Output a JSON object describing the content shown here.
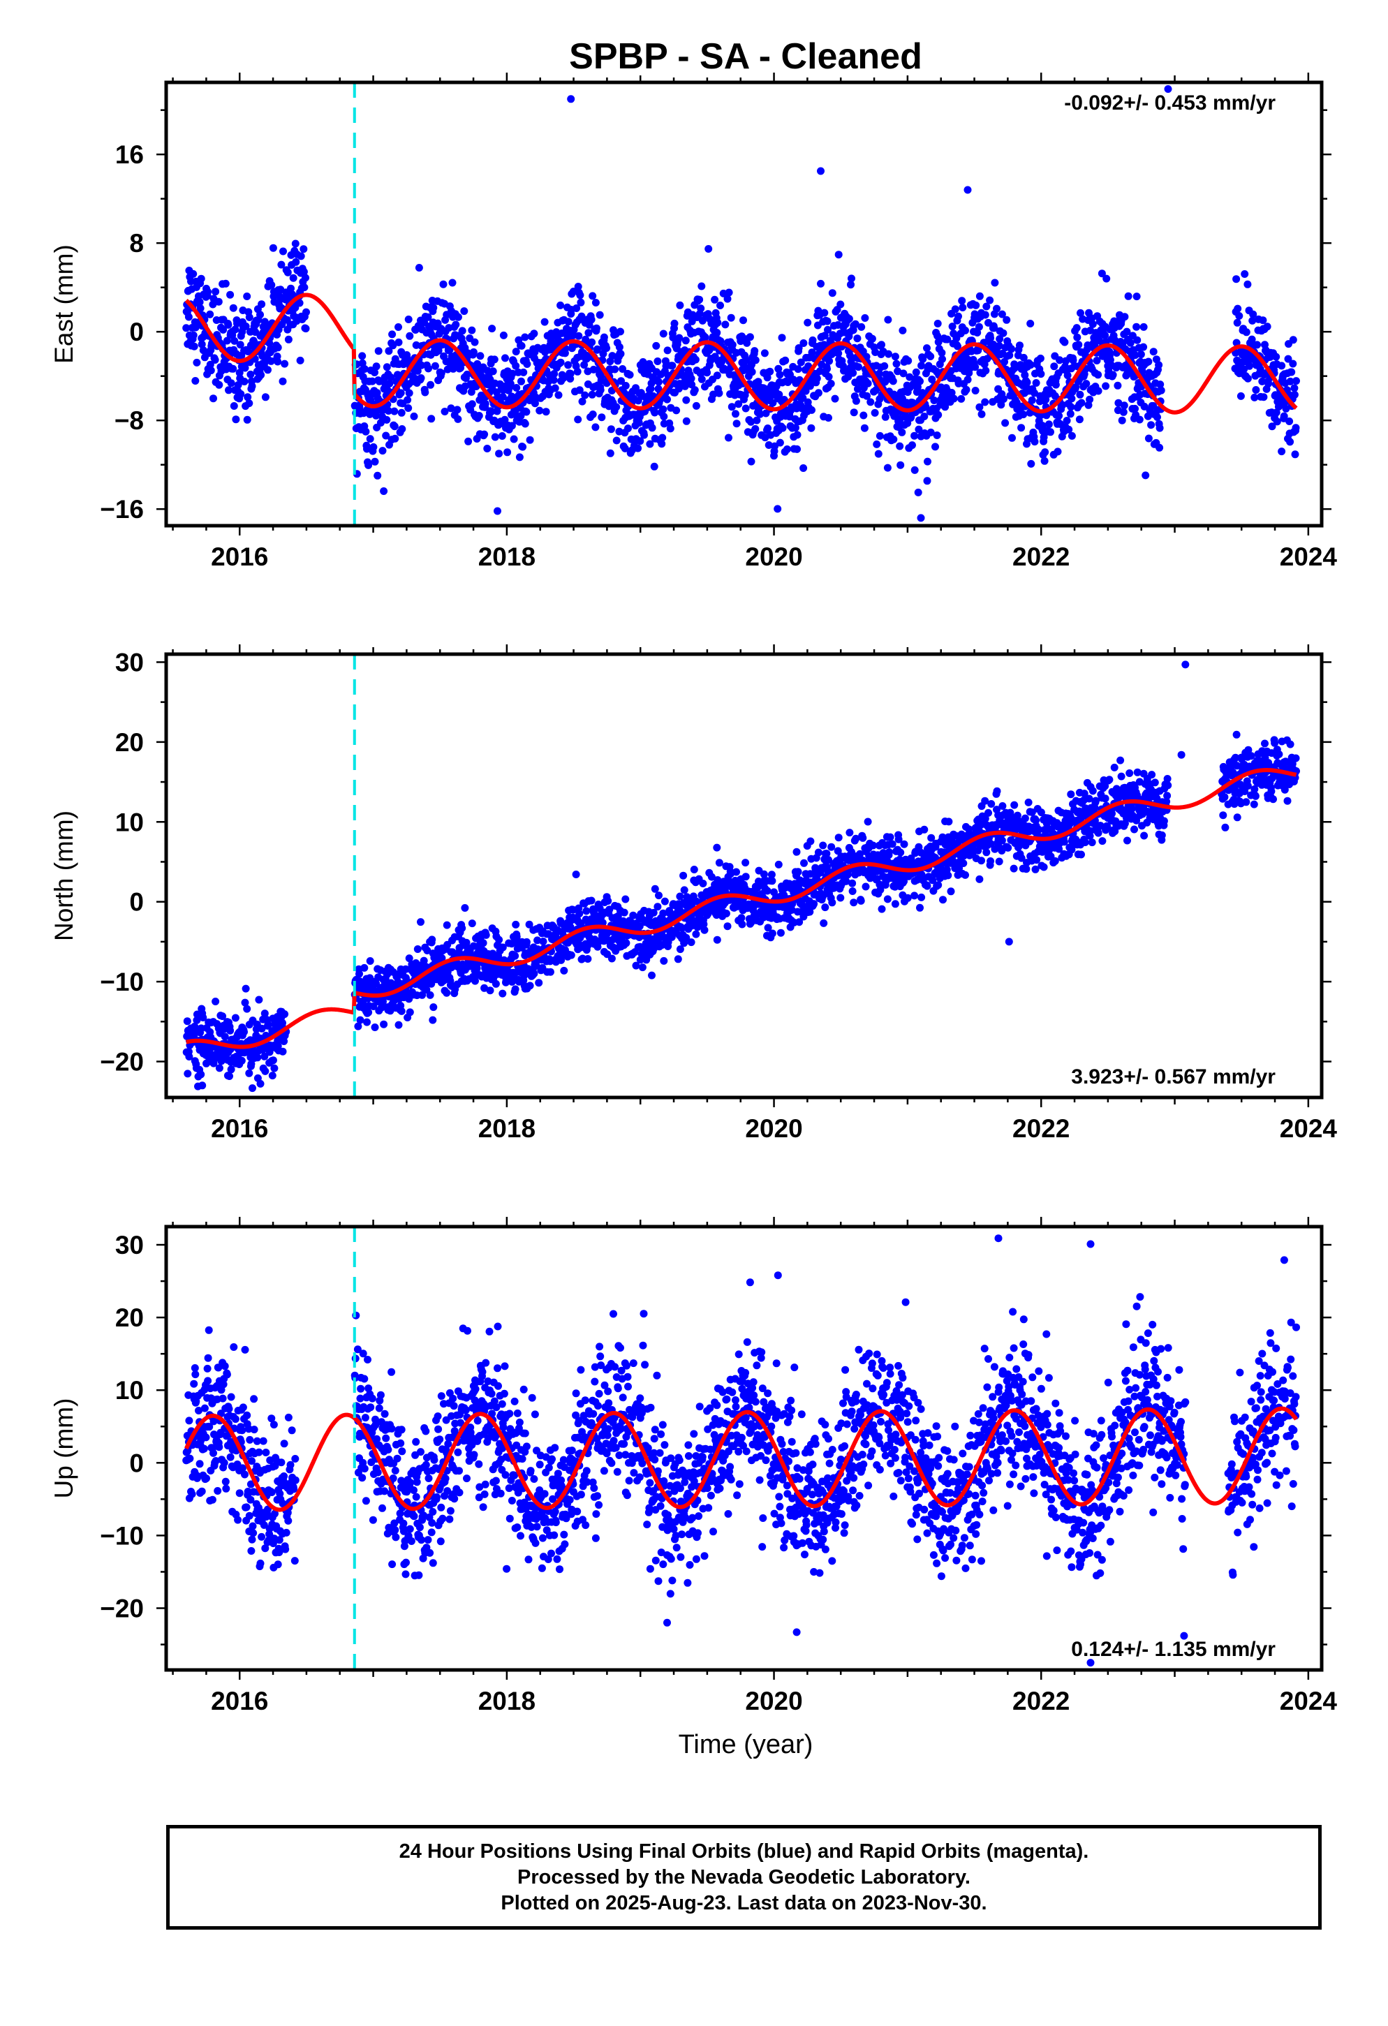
{
  "title": "SPBP  - SA - Cleaned",
  "xlabel": "Time (year)",
  "footer": {
    "line1": "24 Hour Positions Using Final Orbits (blue) and Rapid Orbits (magenta).",
    "line2": "Processed by the Nevada Geodetic Laboratory.",
    "line3": "Plotted on 2025-Aug-23. Last data on 2023-Nov-30."
  },
  "colors": {
    "final_orbits": "#0000ff",
    "model_fit": "#ff0000",
    "offset_marker": "#00e5e5",
    "frame": "#000000"
  },
  "chart_data": [
    {
      "type": "scatter",
      "name": "east",
      "ylabel": "East (mm)",
      "rate_label": "-0.092+/- 0.453 mm/yr",
      "rate_position": "top-right",
      "xlim": [
        2015.45,
        2024.1
      ],
      "ylim": [
        -17.5,
        22.5
      ],
      "xticks": [
        2016,
        2018,
        2020,
        2022,
        2024
      ],
      "yticks": [
        -16,
        -8,
        0,
        8,
        16
      ],
      "offset_epochs": [
        2016.86
      ],
      "data_start": 2015.6,
      "data_end": 2023.91,
      "gaps": [
        [
          2016.5,
          2016.86
        ],
        [
          2022.9,
          2023.45
        ]
      ],
      "model": {
        "rate": -0.092,
        "intercept": 0.0,
        "annual_amp": 3.0,
        "annual_peak": 0.5,
        "offsets": [
          {
            "epoch": 2016.86,
            "step": -4.0
          }
        ]
      },
      "scatter_sd": 2.4,
      "outliers": [
        {
          "x": 2018.48,
          "y": 21.0
        },
        {
          "x": 2020.35,
          "y": 14.5
        },
        {
          "x": 2021.45,
          "y": 12.8
        },
        {
          "x": 2022.95,
          "y": 21.9
        },
        {
          "x": 2021.1,
          "y": -16.8
        },
        {
          "x": 2021.08,
          "y": -14.5
        },
        {
          "x": 2020.22,
          "y": -12.3
        },
        {
          "x": 2023.8,
          "y": -10.8
        },
        {
          "x": 2017.12,
          "y": -10.2
        }
      ]
    },
    {
      "type": "scatter",
      "name": "north",
      "ylabel": "North (mm)",
      "rate_label": "3.923+/- 0.567 mm/yr",
      "rate_position": "bottom-right",
      "xlim": [
        2015.45,
        2024.1
      ],
      "ylim": [
        -24.5,
        31.0
      ],
      "xticks": [
        2016,
        2018,
        2020,
        2022,
        2024
      ],
      "yticks": [
        -20,
        -10,
        0,
        10,
        20,
        30
      ],
      "offset_epochs": [
        2016.86
      ],
      "data_start": 2015.6,
      "data_end": 2023.91,
      "gaps": [
        [
          2016.35,
          2016.86
        ],
        [
          2022.95,
          2023.35
        ]
      ],
      "model": {
        "rate": 3.923,
        "intercept": -1.5,
        "annual_amp": 1.2,
        "annual_peak": 0.6,
        "offsets": [
          {
            "epoch": 2016.86,
            "step": 2.5
          }
        ]
      },
      "scatter_sd": 1.9,
      "outliers": [
        {
          "x": 2023.08,
          "y": 29.7
        },
        {
          "x": 2023.05,
          "y": 18.4
        },
        {
          "x": 2021.76,
          "y": -5.0
        },
        {
          "x": 2015.72,
          "y": -23.0
        }
      ]
    },
    {
      "type": "scatter",
      "name": "up",
      "ylabel": "Up (mm)",
      "rate_label": "0.124+/- 1.135 mm/yr",
      "rate_position": "bottom-right",
      "xlim": [
        2015.45,
        2024.1
      ],
      "ylim": [
        -28.5,
        32.5
      ],
      "xticks": [
        2016,
        2018,
        2020,
        2022,
        2024
      ],
      "yticks": [
        -20,
        -10,
        0,
        10,
        20,
        30
      ],
      "offset_epochs": [
        2016.86
      ],
      "data_start": 2015.6,
      "data_end": 2023.91,
      "gaps": [
        [
          2016.42,
          2016.86
        ],
        [
          2023.08,
          2023.4
        ]
      ],
      "model": {
        "rate": 0.124,
        "intercept": 0.5,
        "annual_amp": 6.5,
        "annual_peak": 0.8,
        "offsets": []
      },
      "scatter_sd": 5.0,
      "outliers": [
        {
          "x": 2021.68,
          "y": 30.9
        },
        {
          "x": 2022.37,
          "y": 30.1
        },
        {
          "x": 2023.82,
          "y": 27.9
        },
        {
          "x": 2020.03,
          "y": 25.8
        },
        {
          "x": 2022.37,
          "y": -27.5
        },
        {
          "x": 2020.17,
          "y": -23.3
        },
        {
          "x": 2023.07,
          "y": -23.8
        },
        {
          "x": 2019.2,
          "y": -22.0
        }
      ]
    }
  ]
}
